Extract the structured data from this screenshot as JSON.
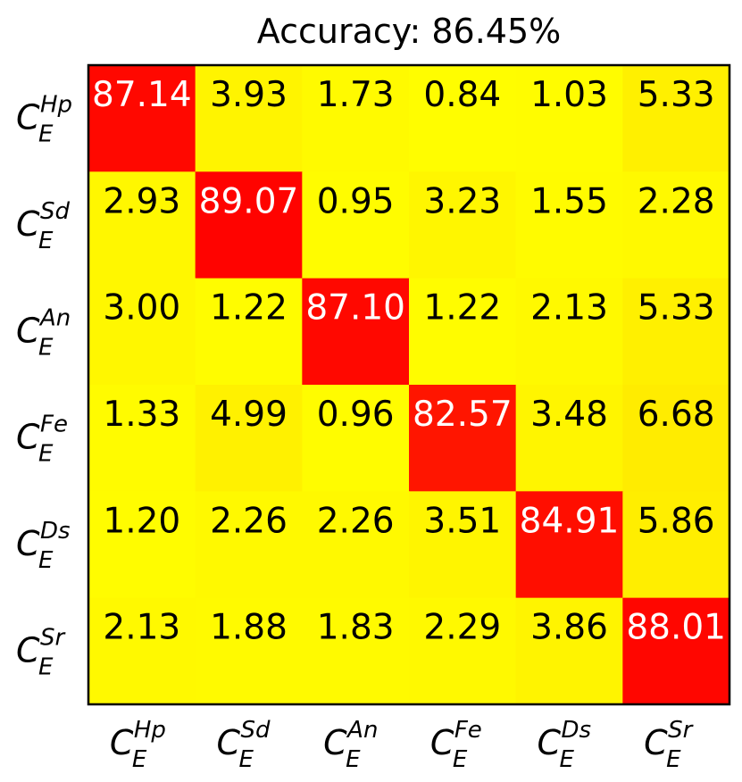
{
  "chart_data": {
    "type": "heatmap",
    "title": "Accuracy: 86.45%",
    "colormap": {
      "low": "#ffff00",
      "high": "#ff0000",
      "vmin": 0,
      "vmax": 90
    },
    "text_colors": {
      "on_high": "#ffffff",
      "on_low": "#000000"
    },
    "row_labels": [
      {
        "base": "C",
        "sub": "E",
        "sup": "Hp"
      },
      {
        "base": "C",
        "sub": "E",
        "sup": "Sd"
      },
      {
        "base": "C",
        "sub": "E",
        "sup": "An"
      },
      {
        "base": "C",
        "sub": "E",
        "sup": "Fe"
      },
      {
        "base": "C",
        "sub": "E",
        "sup": "Ds"
      },
      {
        "base": "C",
        "sub": "E",
        "sup": "Sr"
      }
    ],
    "col_labels": [
      {
        "base": "C",
        "sub": "E",
        "sup": "Hp"
      },
      {
        "base": "C",
        "sub": "E",
        "sup": "Sd"
      },
      {
        "base": "C",
        "sub": "E",
        "sup": "An"
      },
      {
        "base": "C",
        "sub": "E",
        "sup": "Fe"
      },
      {
        "base": "C",
        "sub": "E",
        "sup": "Ds"
      },
      {
        "base": "C",
        "sub": "E",
        "sup": "Sr"
      }
    ],
    "values": [
      [
        "87.14",
        "3.93",
        "1.73",
        "0.84",
        "1.03",
        "5.33"
      ],
      [
        "2.93",
        "89.07",
        "0.95",
        "3.23",
        "1.55",
        "2.28"
      ],
      [
        "3.00",
        "1.22",
        "87.10",
        "1.22",
        "2.13",
        "5.33"
      ],
      [
        "1.33",
        "4.99",
        "0.96",
        "82.57",
        "3.48",
        "6.68"
      ],
      [
        "1.20",
        "2.26",
        "2.26",
        "3.51",
        "84.91",
        "5.86"
      ],
      [
        "2.13",
        "1.88",
        "1.83",
        "2.29",
        "3.86",
        "88.01"
      ]
    ]
  }
}
